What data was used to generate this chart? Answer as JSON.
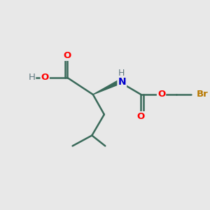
{
  "bg_color": "#e8e8e8",
  "bond_color": "#3a6a5a",
  "bond_width": 1.8,
  "atom_colors": {
    "O": "#ff0000",
    "N": "#0000cc",
    "Br": "#b87800",
    "H": "#607880",
    "C": "#3a6a5a"
  },
  "font_size": 9.5,
  "fig_size": [
    3.0,
    3.0
  ],
  "dpi": 100,
  "xlim": [
    0,
    10
  ],
  "ylim": [
    0,
    10
  ]
}
